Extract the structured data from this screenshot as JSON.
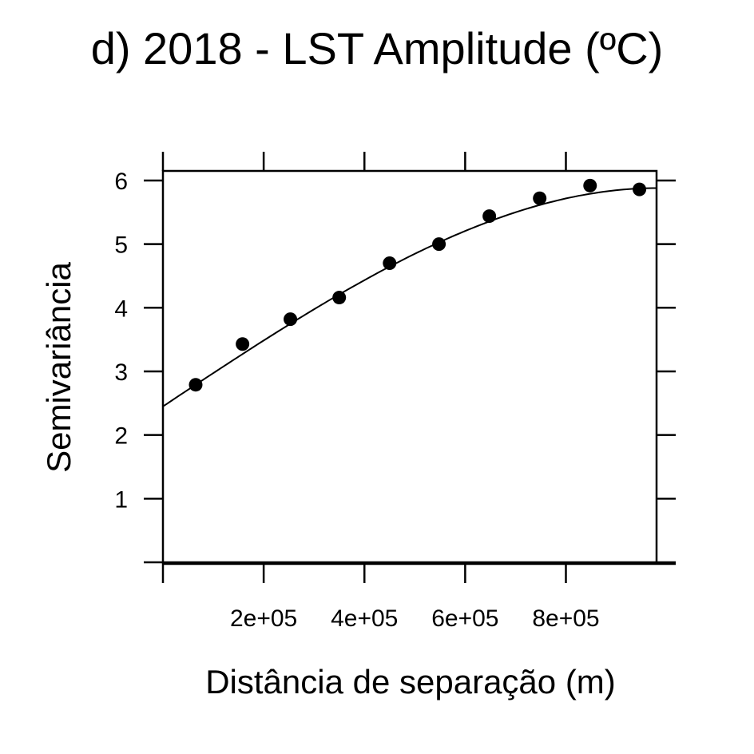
{
  "chart_data": {
    "type": "scatter",
    "title": "d) 2018 - LST Amplitude (ºC)",
    "xlabel": "Distância de separação (m)",
    "ylabel": "Semivariância",
    "xlim": [
      0,
      980000
    ],
    "ylim": [
      0,
      6.15
    ],
    "x_ticks": [
      0,
      200000,
      400000,
      600000,
      800000
    ],
    "x_tick_labels": [
      "2e+05",
      "4e+05",
      "6e+05",
      "8e+05"
    ],
    "x_tick_labels_at": [
      200000,
      400000,
      600000,
      800000
    ],
    "y_ticks": [
      0,
      1,
      2,
      3,
      4,
      5,
      6
    ],
    "y_tick_labels": [
      "1",
      "2",
      "3",
      "4",
      "5",
      "6"
    ],
    "y_tick_labels_at": [
      1,
      2,
      3,
      4,
      5,
      6
    ],
    "series": [
      {
        "kind": "points",
        "x": [
          65000,
          158000,
          253000,
          350000,
          450000,
          548000,
          648000,
          748000,
          848000,
          946000
        ],
        "y": [
          2.79,
          3.43,
          3.82,
          4.16,
          4.7,
          5.0,
          5.44,
          5.72,
          5.92,
          5.86
        ]
      },
      {
        "kind": "fitted-curve",
        "nugget": 2.45,
        "sill": 5.88,
        "range": 980000
      }
    ],
    "grid": false,
    "legend": "none"
  }
}
